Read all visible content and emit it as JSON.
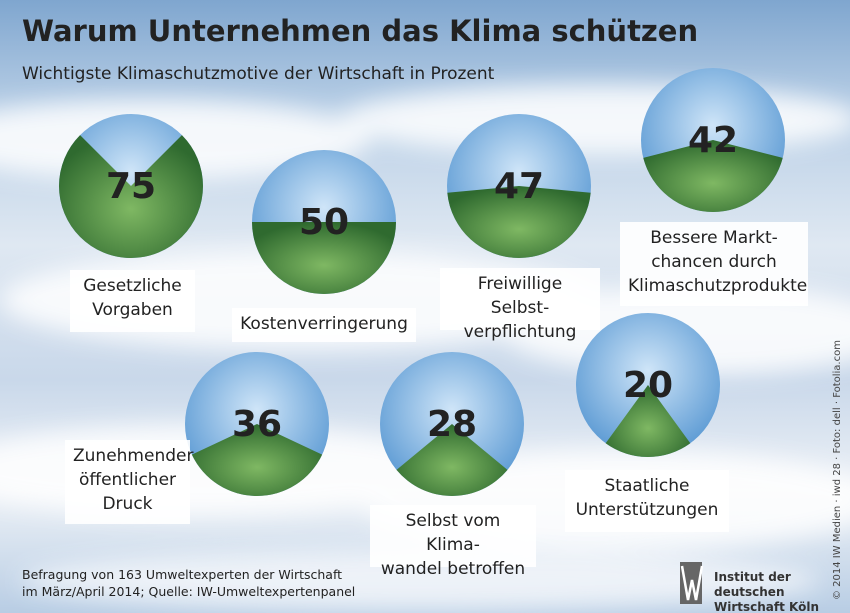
{
  "chart_data": {
    "type": "pie",
    "title": "Warum Unternehmen das Klima schützen",
    "subtitle": "Wichtigste Klimaschutzmotive der Wirtschaft in Prozent",
    "categories": [
      "Gesetzliche\nVorgaben",
      "Kostenverringerung",
      "Freiwillige Selbst-\nverpflichtung",
      "Bessere Markt-\nchancen durch\nKlimaschutzprodukte",
      "Zunehmender\nöffentlicher\nDruck",
      "Selbst vom Klima-\nwandel betroffen",
      "Staatliche\nUnterstützungen"
    ],
    "values": [
      75,
      50,
      47,
      42,
      36,
      28,
      20
    ],
    "color": "#4f8f3e",
    "rest_color": "#8fc0ea",
    "note": "Befragung von 163 Umweltexperten der Wirtschaft\nim März/April 2014; Quelle: IW-Umweltexpertenpanel",
    "publisher": "Institut der deutschen\nWirtschaft Köln",
    "credit": "© 2014 IW Medien · iwd 28 · Foto: dell · Fotolia.com"
  }
}
